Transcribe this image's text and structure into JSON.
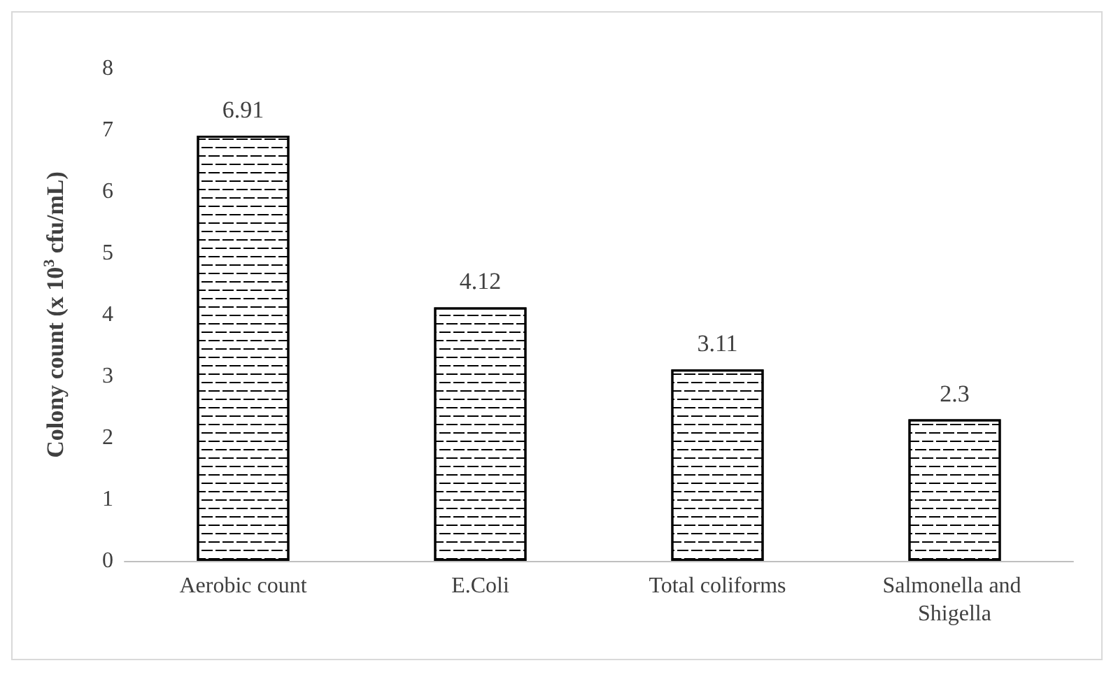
{
  "chart_data": {
    "type": "bar",
    "ylabel": "Colony count (x 10$^{3}$ cfu/mL)",
    "categories": [
      "Aerobic count",
      "E.Coli",
      "Total coliforms",
      "Salmonella and Shigella"
    ],
    "values": [
      6.91,
      4.12,
      3.11,
      2.3
    ],
    "color": "#000000",
    "ylim": [
      0,
      8
    ],
    "yticks": [
      0,
      1,
      2,
      3,
      4,
      5,
      6,
      7,
      8
    ],
    "grid": false,
    "data_labels": true
  }
}
